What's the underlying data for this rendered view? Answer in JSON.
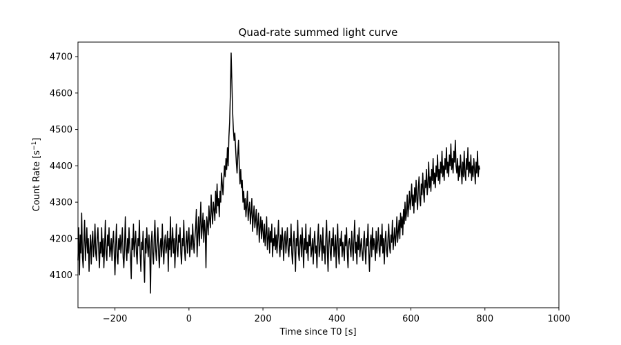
{
  "chart_data": {
    "type": "line",
    "title": "Quad-rate summed light curve",
    "xlabel": "Time since T0 [s]",
    "ylabel": "Count Rate [s",
    "ylabel_sup": "−1",
    "ylabel_tail": "]",
    "xlim": [
      -300,
      1000
    ],
    "ylim": [
      4010,
      4740
    ],
    "x_ticks": [
      -200,
      0,
      200,
      400,
      600,
      800,
      1000
    ],
    "x_tick_labels": [
      "−200",
      "0",
      "200",
      "400",
      "600",
      "800",
      "1000"
    ],
    "y_ticks": [
      4100,
      4200,
      4300,
      4400,
      4500,
      4600,
      4700
    ],
    "y_tick_labels": [
      "4100",
      "4200",
      "4300",
      "4400",
      "4500",
      "4600",
      "4700"
    ],
    "grid": false,
    "legend": "none",
    "line_color": "#000000",
    "series": [
      {
        "x_start": -300,
        "x_step": 2,
        "values": [
          4140,
          4230,
          4100,
          4210,
          4160,
          4270,
          4150,
          4120,
          4190,
          4250,
          4140,
          4180,
          4230,
          4160,
          4200,
          4110,
          4170,
          4210,
          4130,
          4190,
          4220,
          4150,
          4180,
          4240,
          4160,
          4140,
          4200,
          4230,
          4170,
          4120,
          4190,
          4160,
          4230,
          4150,
          4200,
          4120,
          4180,
          4250,
          4160,
          4140,
          4210,
          4180,
          4230,
          4150,
          4170,
          4200,
          4140,
          4190,
          4220,
          4160,
          4100,
          4180,
          4240,
          4150,
          4130,
          4200,
          4170,
          4210,
          4160,
          4190,
          4230,
          4150,
          4120,
          4180,
          4260,
          4170,
          4140,
          4200,
          4160,
          4230,
          4180,
          4150,
          4090,
          4200,
          4170,
          4240,
          4150,
          4190,
          4220,
          4160,
          4130,
          4200,
          4180,
          4250,
          4160,
          4110,
          4190,
          4170,
          4220,
          4140,
          4080,
          4200,
          4160,
          4230,
          4180,
          4150,
          4210,
          4170,
          4050,
          4190,
          4220,
          4160,
          4130,
          4200,
          4250,
          4170,
          4140,
          4190,
          4230,
          4160,
          4120,
          4180,
          4200,
          4150,
          4240,
          4170,
          4130,
          4190,
          4210,
          4160,
          4180,
          4220,
          4110,
          4200,
          4170,
          4260,
          4150,
          4190,
          4230,
          4160,
          4200,
          4120,
          4180,
          4240,
          4170,
          4150,
          4210,
          4190,
          4230,
          4160,
          4130,
          4200,
          4180,
          4250,
          4170,
          4140,
          4190,
          4220,
          4160,
          4200,
          4230,
          4150,
          4180,
          4210,
          4170,
          4240,
          4190,
          4160,
          4200,
          4230,
          4280,
          4150,
          4210,
          4260,
          4180,
          4240,
          4300,
          4200,
          4230,
          4270,
          4190,
          4250,
          4220,
          4120,
          4260,
          4240,
          4210,
          4290,
          4250,
          4230,
          4320,
          4270,
          4240,
          4300,
          4280,
          4250,
          4330,
          4270,
          4350,
          4290,
          4310,
          4260,
          4330,
          4300,
          4380,
          4350,
          4320,
          4360,
          4400,
          4370,
          4420,
          4390,
          4450,
          4400,
          4480,
          4520,
          4600,
          4710,
          4630,
          4550,
          4500,
          4470,
          4490,
          4450,
          4410,
          4380,
          4430,
          4470,
          4400,
          4350,
          4390,
          4340,
          4360,
          4300,
          4330,
          4280,
          4310,
          4260,
          4290,
          4330,
          4250,
          4280,
          4300,
          4240,
          4270,
          4310,
          4220,
          4260,
          4290,
          4230,
          4250,
          4280,
          4210,
          4240,
          4270,
          4190,
          4230,
          4260,
          4200,
          4250,
          4220,
          4190,
          4240,
          4180,
          4210,
          4260,
          4170,
          4200,
          4230,
          4160,
          4220,
          4190,
          4240,
          4150,
          4200,
          4180,
          4230,
          4170,
          4210,
          4160,
          4200,
          4250,
          4180,
          4150,
          4210,
          4170,
          4230,
          4190,
          4140,
          4200,
          4220,
          4160,
          4190,
          4230,
          4170,
          4150,
          4200,
          4180,
          4240,
          4160,
          4130,
          4190,
          4220,
          4170,
          4110,
          4200,
          4180,
          4250,
          4160,
          4140,
          4190,
          4210,
          4150,
          4230,
          4180,
          4120,
          4200,
          4170,
          4240,
          4160,
          4190,
          4140,
          4210,
          4180,
          4230,
          4150,
          4170,
          4200,
          4130,
          4190,
          4220,
          4160,
          4180,
          4120,
          4200,
          4240,
          4150,
          4170,
          4210,
          4190,
          4140,
          4230,
          4160,
          4180,
          4130,
          4200,
          4250,
          4170,
          4110,
          4190,
          4220,
          4160,
          4140,
          4200,
          4180,
          4230,
          4150,
          4170,
          4210,
          4120,
          4190,
          4240,
          4160,
          4130,
          4200,
          4180,
          4220,
          4150,
          4190,
          4170,
          4140,
          4210,
          4180,
          4230,
          4160,
          4120,
          4190,
          4200,
          4170,
          4150,
          4220,
          4180,
          4140,
          4200,
          4250,
          4160,
          4190,
          4130,
          4210,
          4170,
          4230,
          4150,
          4180,
          4200,
          4160,
          4140,
          4190,
          4220,
          4170,
          4130,
          4200,
          4180,
          4240,
          4160,
          4110,
          4190,
          4210,
          4150,
          4230,
          4170,
          4200,
          4180,
          4140,
          4220,
          4160,
          4190,
          4230,
          4170,
          4150,
          4210,
          4180,
          4240,
          4160,
          4200,
          4130,
          4190,
          4220,
          4170,
          4150,
          4200,
          4240,
          4180,
          4160,
          4210,
          4190,
          4250,
          4170,
          4200,
          4230,
          4180,
          4210,
          4260,
          4190,
          4220,
          4250,
          4200,
          4270,
          4230,
          4260,
          4210,
          4280,
          4240,
          4300,
          4250,
          4270,
          4320,
          4260,
          4290,
          4330,
          4280,
          4310,
          4350,
          4290,
          4320,
          4270,
          4340,
          4300,
          4360,
          4310,
          4280,
          4340,
          4370,
          4310,
          4290,
          4350,
          4320,
          4380,
          4330,
          4300,
          4360,
          4340,
          4390,
          4320,
          4350,
          4410,
          4340,
          4370,
          4330,
          4390,
          4360,
          4420,
          4350,
          4380,
          4340,
          4400,
          4370,
          4430,
          4360,
          4390,
          4350,
          4410,
          4380,
          4440,
          4370,
          4400,
          4360,
          4420,
          4390,
          4450,
          4380,
          4410,
          4370,
          4430,
          4400,
          4460,
          4390,
          4420,
          4380,
          4440,
          4410,
          4470,
          4400,
          4380,
          4420,
          4360,
          4400,
          4370,
          4430,
          4390,
          4350,
          4410,
          4370,
          4440,
          4380,
          4360,
          4420,
          4390,
          4450,
          4370,
          4410,
          4380,
          4430,
          4360,
          4400,
          4370,
          4420,
          4390,
          4350,
          4410,
          4380,
          4440,
          4370,
          4400,
          4390
        ]
      }
    ]
  }
}
